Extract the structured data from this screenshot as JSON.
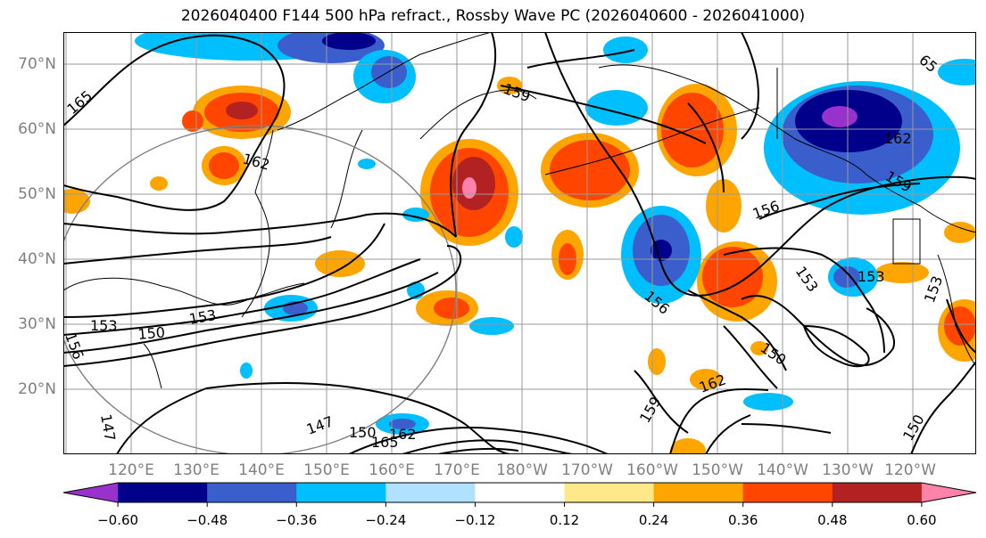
{
  "title": "2026040400 F144 500 hPa refract., Rossby Wave PC (2026040600 - 2026041000)",
  "lat_labels": [
    "70°N",
    "60°N",
    "50°N",
    "40°N",
    "30°N",
    "20°N"
  ],
  "lon_labels": [
    "120°E",
    "130°E",
    "140°E",
    "150°E",
    "160°E",
    "170°E",
    "180°W",
    "170°W",
    "160°W",
    "150°W",
    "140°W",
    "130°W",
    "120°W"
  ],
  "contour_labels": [
    "165",
    "159",
    "162",
    "153",
    "156",
    "153",
    "150",
    "147",
    "150",
    "162",
    "165",
    "156",
    "153",
    "156",
    "150",
    "153",
    "159",
    "162",
    "159",
    "162",
    "150",
    "156",
    "147",
    "65",
    "153"
  ],
  "colorbar": {
    "ticks": [
      "−0.60",
      "−0.48",
      "−0.36",
      "−0.24",
      "−0.12",
      "0.12",
      "0.24",
      "0.36",
      "0.48",
      "0.60"
    ],
    "colors": [
      "#9932cc",
      "#00008b",
      "#3a5fcd",
      "#00bfff",
      "#b0e2ff",
      "#ffffff",
      "#ffe88a",
      "#ffa500",
      "#ff4500",
      "#b22222",
      "#ff82ab"
    ]
  }
}
